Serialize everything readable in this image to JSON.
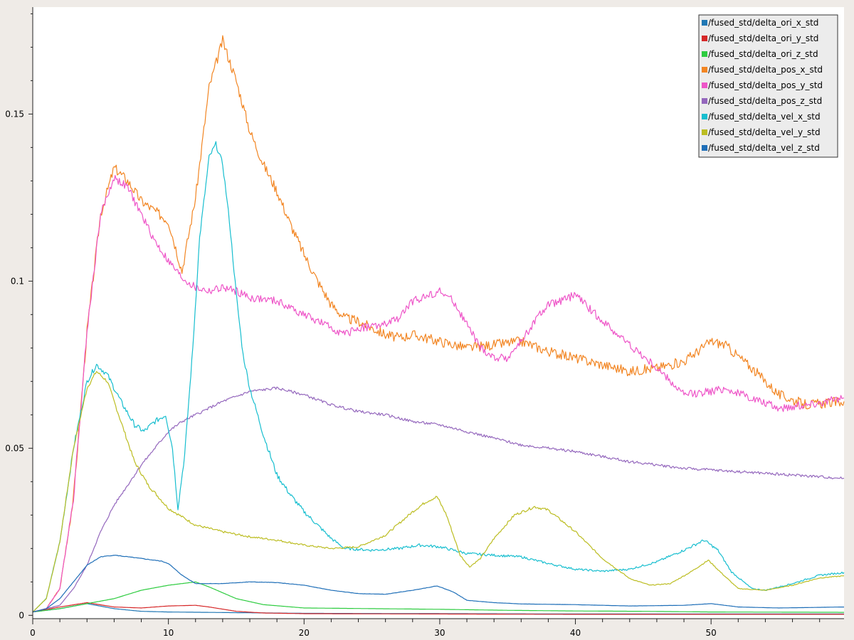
{
  "chart_data": {
    "type": "line",
    "title": "",
    "xlabel": "",
    "ylabel": "",
    "xlim": [
      0,
      59.8
    ],
    "ylim": [
      -0.001,
      0.182
    ],
    "x_ticks": [
      0,
      10,
      20,
      30,
      40,
      50
    ],
    "x_tick_labels": [
      "0",
      "10",
      "20",
      "30",
      "40",
      "50"
    ],
    "y_ticks": [
      0,
      0.05,
      0.1,
      0.15
    ],
    "y_tick_labels": [
      "0",
      "0.05",
      "0.1",
      "0.15"
    ],
    "grid": false,
    "legend_position": "top-right",
    "series": [
      {
        "name": "/fused_std/delta_ori_x_std",
        "color": "#1f77b4",
        "noise": 0,
        "points": [
          [
            0,
            0.001
          ],
          [
            2,
            0.002
          ],
          [
            4,
            0.0035
          ],
          [
            6,
            0.002
          ],
          [
            8,
            0.0012
          ],
          [
            10,
            0.001
          ],
          [
            15,
            0.0008
          ],
          [
            20,
            0.0006
          ],
          [
            30,
            0.0005
          ],
          [
            40,
            0.0004
          ],
          [
            50,
            0.0004
          ],
          [
            59.8,
            0.0004
          ]
        ]
      },
      {
        "name": "/fused_std/delta_ori_y_std",
        "color": "#d62728",
        "noise": 0,
        "points": [
          [
            0,
            0.001
          ],
          [
            2,
            0.0025
          ],
          [
            4,
            0.0038
          ],
          [
            6,
            0.0025
          ],
          [
            8,
            0.0022
          ],
          [
            10,
            0.0028
          ],
          [
            12,
            0.003
          ],
          [
            13,
            0.0025
          ],
          [
            15,
            0.0012
          ],
          [
            17,
            0.0007
          ],
          [
            20,
            0.0005
          ],
          [
            30,
            0.0004
          ],
          [
            40,
            0.0003
          ],
          [
            50,
            0.0003
          ],
          [
            59.8,
            0.0003
          ]
        ]
      },
      {
        "name": "/fused_std/delta_ori_z_std",
        "color": "#2ecc40",
        "noise": 0,
        "points": [
          [
            0,
            0.001
          ],
          [
            2,
            0.002
          ],
          [
            4,
            0.0035
          ],
          [
            6,
            0.005
          ],
          [
            8,
            0.0075
          ],
          [
            10,
            0.009
          ],
          [
            12,
            0.01
          ],
          [
            13,
            0.0085
          ],
          [
            15,
            0.005
          ],
          [
            17,
            0.0032
          ],
          [
            20,
            0.0022
          ],
          [
            25,
            0.002
          ],
          [
            30,
            0.0018
          ],
          [
            35,
            0.0015
          ],
          [
            40,
            0.0013
          ],
          [
            45,
            0.0012
          ],
          [
            50,
            0.001
          ],
          [
            59.8,
            0.0009
          ]
        ]
      },
      {
        "name": "/fused_std/delta_pos_x_std",
        "color": "#f28522",
        "noise": 0.0015,
        "points": [
          [
            0,
            0.001
          ],
          [
            1,
            0.002
          ],
          [
            2,
            0.008
          ],
          [
            3,
            0.035
          ],
          [
            4,
            0.085
          ],
          [
            5,
            0.12
          ],
          [
            6,
            0.134
          ],
          [
            7,
            0.13
          ],
          [
            8,
            0.124
          ],
          [
            9,
            0.121
          ],
          [
            10,
            0.118
          ],
          [
            11,
            0.103
          ],
          [
            12,
            0.125
          ],
          [
            13,
            0.158
          ],
          [
            14,
            0.172
          ],
          [
            15,
            0.16
          ],
          [
            16,
            0.145
          ],
          [
            17,
            0.135
          ],
          [
            18,
            0.127
          ],
          [
            19,
            0.117
          ],
          [
            20,
            0.108
          ],
          [
            21,
            0.1
          ],
          [
            22,
            0.093
          ],
          [
            23,
            0.089
          ],
          [
            24,
            0.088
          ],
          [
            25,
            0.086
          ],
          [
            26,
            0.084
          ],
          [
            27,
            0.083
          ],
          [
            28,
            0.084
          ],
          [
            30,
            0.082
          ],
          [
            32,
            0.08
          ],
          [
            34,
            0.081
          ],
          [
            36,
            0.082
          ],
          [
            38,
            0.079
          ],
          [
            40,
            0.077
          ],
          [
            42,
            0.075
          ],
          [
            44,
            0.073
          ],
          [
            46,
            0.074
          ],
          [
            48,
            0.076
          ],
          [
            49,
            0.079
          ],
          [
            50,
            0.082
          ],
          [
            51,
            0.081
          ],
          [
            53,
            0.074
          ],
          [
            55,
            0.066
          ],
          [
            57,
            0.063
          ],
          [
            59.8,
            0.064
          ]
        ]
      },
      {
        "name": "/fused_std/delta_pos_y_std",
        "color": "#ee55c8",
        "noise": 0.0012,
        "points": [
          [
            0,
            0.001
          ],
          [
            1,
            0.002
          ],
          [
            2,
            0.008
          ],
          [
            3,
            0.035
          ],
          [
            4,
            0.085
          ],
          [
            5,
            0.12
          ],
          [
            6,
            0.131
          ],
          [
            7,
            0.128
          ],
          [
            8,
            0.12
          ],
          [
            9,
            0.112
          ],
          [
            10,
            0.106
          ],
          [
            11,
            0.101
          ],
          [
            12,
            0.098
          ],
          [
            13,
            0.097
          ],
          [
            14,
            0.098
          ],
          [
            15,
            0.097
          ],
          [
            16,
            0.095
          ],
          [
            18,
            0.094
          ],
          [
            20,
            0.09
          ],
          [
            22,
            0.086
          ],
          [
            23,
            0.084
          ],
          [
            24,
            0.086
          ],
          [
            26,
            0.087
          ],
          [
            27,
            0.089
          ],
          [
            28,
            0.094
          ],
          [
            30,
            0.097
          ],
          [
            31,
            0.094
          ],
          [
            32,
            0.087
          ],
          [
            33,
            0.08
          ],
          [
            34,
            0.077
          ],
          [
            35,
            0.077
          ],
          [
            36,
            0.082
          ],
          [
            37,
            0.088
          ],
          [
            38,
            0.093
          ],
          [
            39,
            0.094
          ],
          [
            40,
            0.096
          ],
          [
            41,
            0.092
          ],
          [
            42,
            0.088
          ],
          [
            44,
            0.081
          ],
          [
            46,
            0.074
          ],
          [
            47,
            0.07
          ],
          [
            48,
            0.066
          ],
          [
            50,
            0.067
          ],
          [
            51,
            0.068
          ],
          [
            53,
            0.065
          ],
          [
            55,
            0.062
          ],
          [
            57,
            0.063
          ],
          [
            59.8,
            0.065
          ]
        ]
      },
      {
        "name": "/fused_std/delta_pos_z_std",
        "color": "#9467bd",
        "noise": 0.0004,
        "points": [
          [
            0,
            0.001
          ],
          [
            2,
            0.003
          ],
          [
            3,
            0.008
          ],
          [
            4,
            0.015
          ],
          [
            5,
            0.025
          ],
          [
            6,
            0.033
          ],
          [
            7,
            0.039
          ],
          [
            8,
            0.045
          ],
          [
            9,
            0.05
          ],
          [
            10,
            0.055
          ],
          [
            11,
            0.058
          ],
          [
            12,
            0.06
          ],
          [
            14,
            0.064
          ],
          [
            16,
            0.067
          ],
          [
            18,
            0.068
          ],
          [
            20,
            0.066
          ],
          [
            22,
            0.063
          ],
          [
            24,
            0.061
          ],
          [
            26,
            0.06
          ],
          [
            28,
            0.058
          ],
          [
            30,
            0.057
          ],
          [
            32,
            0.055
          ],
          [
            34,
            0.053
          ],
          [
            36,
            0.051
          ],
          [
            38,
            0.05
          ],
          [
            40,
            0.049
          ],
          [
            44,
            0.046
          ],
          [
            48,
            0.044
          ],
          [
            52,
            0.043
          ],
          [
            56,
            0.042
          ],
          [
            59.8,
            0.041
          ]
        ]
      },
      {
        "name": "/fused_std/delta_vel_x_std",
        "color": "#17becf",
        "noise": 0.0008,
        "points": [
          [
            0,
            0.001
          ],
          [
            1,
            0.005
          ],
          [
            2,
            0.022
          ],
          [
            3,
            0.05
          ],
          [
            4,
            0.07
          ],
          [
            4.7,
            0.075
          ],
          [
            5.5,
            0.072
          ],
          [
            6.5,
            0.064
          ],
          [
            7.5,
            0.057
          ],
          [
            8.2,
            0.055
          ],
          [
            9,
            0.058
          ],
          [
            9.8,
            0.06
          ],
          [
            10.3,
            0.05
          ],
          [
            10.7,
            0.032
          ],
          [
            11.2,
            0.048
          ],
          [
            11.8,
            0.08
          ],
          [
            12.3,
            0.113
          ],
          [
            13,
            0.137
          ],
          [
            13.5,
            0.141
          ],
          [
            14,
            0.135
          ],
          [
            14.5,
            0.118
          ],
          [
            15,
            0.096
          ],
          [
            15.5,
            0.078
          ],
          [
            16,
            0.068
          ],
          [
            17,
            0.054
          ],
          [
            18,
            0.042
          ],
          [
            19,
            0.036
          ],
          [
            20,
            0.031
          ],
          [
            21,
            0.027
          ],
          [
            22,
            0.023
          ],
          [
            23,
            0.02
          ],
          [
            25,
            0.0195
          ],
          [
            27,
            0.02
          ],
          [
            28.5,
            0.021
          ],
          [
            30,
            0.0205
          ],
          [
            32,
            0.0185
          ],
          [
            34,
            0.018
          ],
          [
            36,
            0.0175
          ],
          [
            38,
            0.0155
          ],
          [
            40,
            0.0138
          ],
          [
            42,
            0.0132
          ],
          [
            44,
            0.0138
          ],
          [
            46,
            0.016
          ],
          [
            48,
            0.0195
          ],
          [
            49.5,
            0.0225
          ],
          [
            50.5,
            0.0195
          ],
          [
            51.5,
            0.013
          ],
          [
            53,
            0.008
          ],
          [
            54,
            0.0075
          ],
          [
            56,
            0.0095
          ],
          [
            58,
            0.012
          ],
          [
            59.8,
            0.0128
          ]
        ]
      },
      {
        "name": "/fused_std/delta_vel_y_std",
        "color": "#bcbd22",
        "noise": 0.0005,
        "points": [
          [
            0,
            0.001
          ],
          [
            1,
            0.005
          ],
          [
            2,
            0.022
          ],
          [
            3,
            0.05
          ],
          [
            4,
            0.068
          ],
          [
            4.7,
            0.073
          ],
          [
            5.5,
            0.07
          ],
          [
            6.5,
            0.058
          ],
          [
            7.5,
            0.046
          ],
          [
            8.5,
            0.039
          ],
          [
            10,
            0.032
          ],
          [
            12,
            0.027
          ],
          [
            14,
            0.025
          ],
          [
            16,
            0.0235
          ],
          [
            18,
            0.0225
          ],
          [
            20,
            0.021
          ],
          [
            22,
            0.02
          ],
          [
            24,
            0.0205
          ],
          [
            26,
            0.024
          ],
          [
            28,
            0.031
          ],
          [
            29,
            0.034
          ],
          [
            29.8,
            0.0355
          ],
          [
            30.5,
            0.03
          ],
          [
            31.5,
            0.018
          ],
          [
            32.2,
            0.0145
          ],
          [
            33,
            0.017
          ],
          [
            34,
            0.023
          ],
          [
            35.5,
            0.03
          ],
          [
            37,
            0.0325
          ],
          [
            38,
            0.0315
          ],
          [
            40,
            0.025
          ],
          [
            42,
            0.017
          ],
          [
            44,
            0.011
          ],
          [
            45.5,
            0.009
          ],
          [
            47,
            0.0095
          ],
          [
            48.5,
            0.013
          ],
          [
            49.8,
            0.0165
          ],
          [
            50.8,
            0.0125
          ],
          [
            52,
            0.008
          ],
          [
            54,
            0.0075
          ],
          [
            56,
            0.009
          ],
          [
            58,
            0.0112
          ],
          [
            59.8,
            0.0118
          ]
        ]
      },
      {
        "name": "/fused_std/delta_vel_z_std",
        "color": "#1f6fb8",
        "noise": 0.0002,
        "points": [
          [
            0,
            0.001
          ],
          [
            1,
            0.002
          ],
          [
            2,
            0.005
          ],
          [
            3,
            0.01
          ],
          [
            4,
            0.015
          ],
          [
            5,
            0.0175
          ],
          [
            6,
            0.018
          ],
          [
            7,
            0.0175
          ],
          [
            8,
            0.017
          ],
          [
            9.5,
            0.0162
          ],
          [
            10,
            0.0155
          ],
          [
            11,
            0.012
          ],
          [
            12,
            0.0095
          ],
          [
            14,
            0.0095
          ],
          [
            16,
            0.01
          ],
          [
            18,
            0.0098
          ],
          [
            20,
            0.009
          ],
          [
            22,
            0.0075
          ],
          [
            24,
            0.0065
          ],
          [
            26,
            0.0063
          ],
          [
            28,
            0.0075
          ],
          [
            29.8,
            0.0088
          ],
          [
            31,
            0.007
          ],
          [
            32,
            0.0045
          ],
          [
            34,
            0.0038
          ],
          [
            36,
            0.0034
          ],
          [
            40,
            0.0032
          ],
          [
            44,
            0.0028
          ],
          [
            48,
            0.003
          ],
          [
            50,
            0.0035
          ],
          [
            52,
            0.0025
          ],
          [
            55,
            0.0022
          ],
          [
            59.8,
            0.0025
          ]
        ]
      }
    ]
  }
}
